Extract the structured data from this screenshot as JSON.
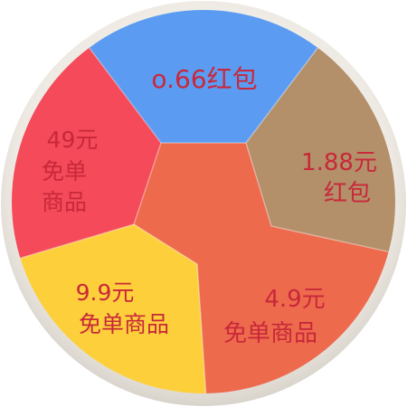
{
  "wheel": {
    "segments": [
      {
        "id": "seg-066-hongbao",
        "lines": [
          "o.66红包"
        ],
        "color": "#5b9cf2",
        "text_color": "#c8283a"
      },
      {
        "id": "seg-188-hongbao",
        "lines": [
          "1.88元",
          "红包"
        ],
        "color": "#b38f6a",
        "text_color": "#c8283a"
      },
      {
        "id": "seg-49-free",
        "lines": [
          "4.9元",
          "免单商品"
        ],
        "color": "#ee6a4d",
        "text_color": "#c8283a"
      },
      {
        "id": "seg-99-free",
        "lines": [
          "9.9元",
          "免单商品"
        ],
        "color": "#fdd03b",
        "text_color": "#c8283a"
      },
      {
        "id": "seg-49yuan-free",
        "lines": [
          "49元",
          "免单",
          "商品"
        ],
        "color": "#f44a5a",
        "text_color": "#c8283a"
      }
    ],
    "rim_color": "#ece8e1"
  }
}
